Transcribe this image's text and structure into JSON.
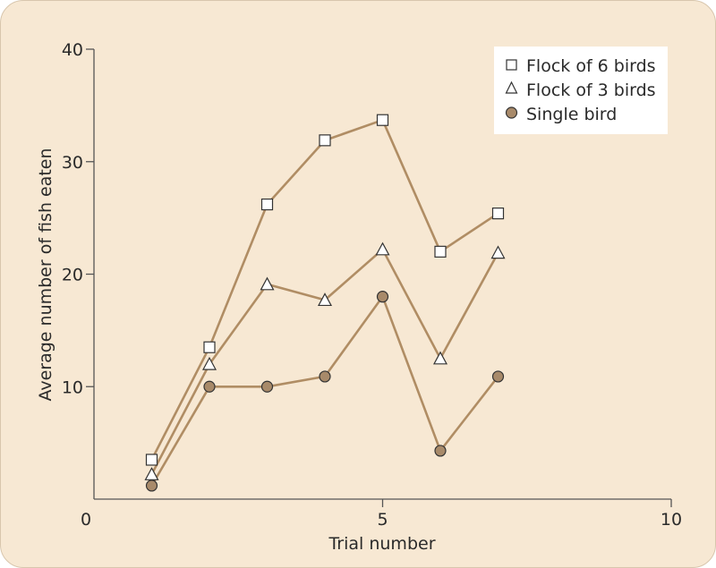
{
  "chart_data": {
    "type": "line",
    "xlabel": "Trial number",
    "ylabel": "Average number of fish eaten",
    "xlim": [
      0,
      10
    ],
    "ylim": [
      0,
      40
    ],
    "x_ticks": [
      0,
      5,
      10
    ],
    "y_ticks": [
      10,
      20,
      30,
      40
    ],
    "x_tick_labels": [
      "0",
      "5",
      "10"
    ],
    "y_tick_labels": [
      "10",
      "20",
      "30",
      "40"
    ],
    "grid": false,
    "legend_position": "top-right",
    "line_color": "#b08d64",
    "marker_fill_circle": "#a88a6a",
    "series": [
      {
        "name": "Flock of 6 birds",
        "marker": "square",
        "x": [
          1,
          2,
          3,
          4,
          5,
          6,
          7
        ],
        "y": [
          3.5,
          13.5,
          26.2,
          31.9,
          33.7,
          22.0,
          25.4
        ]
      },
      {
        "name": "Flock of 3 birds",
        "marker": "triangle",
        "x": [
          1,
          2,
          3,
          4,
          5,
          6,
          7
        ],
        "y": [
          2.2,
          12.0,
          19.1,
          17.7,
          22.2,
          12.5,
          21.9
        ]
      },
      {
        "name": "Single bird",
        "marker": "circle",
        "x": [
          1,
          2,
          3,
          4,
          5,
          6,
          7
        ],
        "y": [
          1.2,
          10.0,
          10.0,
          10.9,
          18.0,
          4.3,
          10.9
        ]
      }
    ]
  }
}
